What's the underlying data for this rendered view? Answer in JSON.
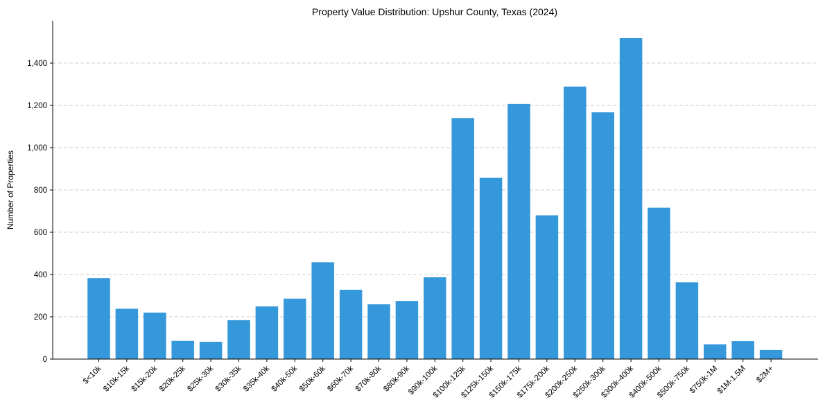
{
  "chart_data": {
    "type": "bar",
    "title": "Property Value Distribution: Upshur County, Texas (2024)",
    "xlabel": "",
    "ylabel": "Number of Properties",
    "ylim": [
      0,
      1600
    ],
    "yticks": [
      0,
      200,
      400,
      600,
      800,
      1000,
      1200,
      1400
    ],
    "ytick_labels": [
      "0",
      "200",
      "400",
      "600",
      "800",
      "1,000",
      "1,200",
      "1,400"
    ],
    "grid": "y-dashed",
    "bar_color": "#3498db",
    "categories": [
      "$<10k",
      "$10k-15k",
      "$15k-20k",
      "$20k-25k",
      "$25k-30k",
      "$30k-35k",
      "$35k-40k",
      "$40k-50k",
      "$50k-60k",
      "$60k-70k",
      "$70k-80k",
      "$80k-90k",
      "$90k-100k",
      "$100k-125k",
      "$125k-150k",
      "$150k-175k",
      "$175k-200k",
      "$200k-250k",
      "$250k-300k",
      "$300k-400k",
      "$400k-500k",
      "$500k-750k",
      "$750k-1M",
      "$1M-1.5M",
      "$2M+"
    ],
    "values": [
      383,
      238,
      220,
      86,
      82,
      184,
      249,
      286,
      458,
      328,
      259,
      275,
      387,
      1140,
      857,
      1207,
      680,
      1289,
      1167,
      1518,
      716,
      363,
      70,
      85,
      43
    ]
  }
}
